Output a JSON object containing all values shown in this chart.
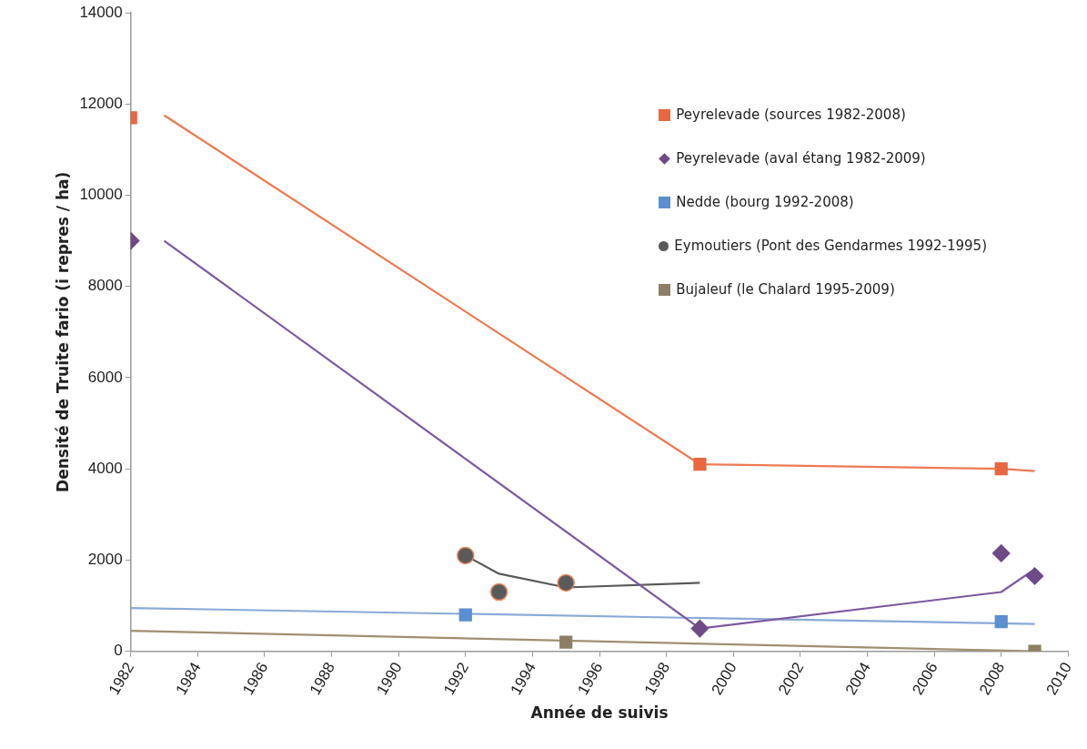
{
  "chart_data": {
    "type": "scatter",
    "xlabel": "Année de suivis",
    "ylabel": "Densité de Truite fario (i repres / ha)",
    "xlim": [
      1982,
      2010
    ],
    "xticks": [
      1982,
      1984,
      1986,
      1988,
      1990,
      1992,
      1994,
      1996,
      1998,
      2000,
      2002,
      2004,
      2006,
      2008,
      2010
    ],
    "ylim": [
      0,
      14000
    ],
    "yticks": [
      0,
      2000,
      4000,
      6000,
      8000,
      10000,
      12000,
      14000
    ],
    "grid": false,
    "legend": "top right",
    "series": [
      {
        "name": "Peyrelevade (sources 1982-2008)",
        "marker": "square",
        "color": "#e8673f",
        "x": [
          1982,
          1999,
          2008
        ],
        "values": [
          11700,
          4100,
          4000
        ]
      },
      {
        "name": "Peyrelevade (aval étang 1982-2009)",
        "marker": "diamond",
        "color": "#6e4a86",
        "x": [
          1982,
          1999,
          2008,
          2009
        ],
        "values": [
          9000,
          500,
          2150,
          1650
        ]
      },
      {
        "name": "Nedde (bourg 1992-2008)",
        "marker": "square",
        "color": "#5b8fd0",
        "x": [
          1992,
          2008
        ],
        "values": [
          800,
          650
        ]
      },
      {
        "name": "Eymoutiers (Pont des Gendarmes 1992-1995)",
        "marker": "circle",
        "color": "#5a5a5a",
        "x": [
          1992,
          1993,
          1995
        ],
        "values": [
          2100,
          1300,
          1500
        ]
      },
      {
        "name": "Bujaleuf (le Chalard 1995-2009)",
        "marker": "square",
        "color": "#8c7f66",
        "x": [
          1995,
          2009
        ],
        "values": [
          200,
          0
        ]
      },
      {
        "type": "line",
        "marker": "none",
        "color": "#ee7a52",
        "x": [
          1983,
          1999,
          2008,
          2009
        ],
        "values": [
          11750,
          4100,
          4000,
          3950
        ]
      },
      {
        "type": "line",
        "marker": "none",
        "color": "#7b58a0",
        "x": [
          1983,
          1999,
          2008,
          2009
        ],
        "values": [
          9000,
          500,
          1300,
          1800
        ]
      },
      {
        "type": "line",
        "marker": "none",
        "color": "#8aa9d8",
        "x": [
          1982,
          2009
        ],
        "values": [
          950,
          600
        ]
      },
      {
        "type": "line",
        "marker": "none",
        "color": "#595959",
        "x": [
          1992,
          1993,
          1995,
          1999
        ],
        "values": [
          2100,
          1700,
          1400,
          1500
        ]
      },
      {
        "type": "line",
        "marker": "none",
        "color": "#a08f72",
        "x": [
          1982,
          2009
        ],
        "values": [
          450,
          0
        ]
      }
    ]
  }
}
